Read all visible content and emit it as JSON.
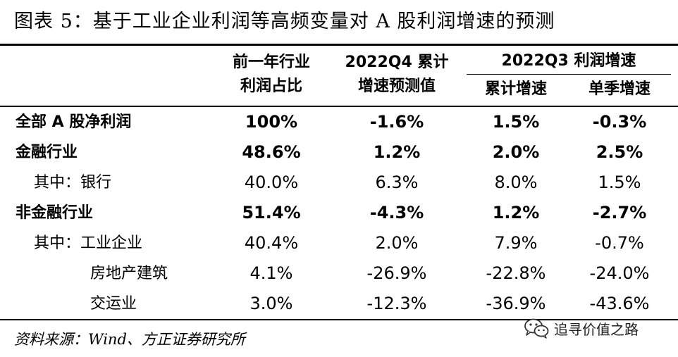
{
  "title": "图表 5：基于工业企业利润等高频变量对 A 股利润增速的预测",
  "headers": {
    "share_line1": "前一年行业",
    "share_line2": "利润占比",
    "forecast_line1": "2022Q4 累计",
    "forecast_line2": "增速预测值",
    "q3_group": "2022Q3 利润增速",
    "q3_cum": "累计增速",
    "q3_single": "单季增速"
  },
  "rows": [
    {
      "label": "全部 A 股净利润",
      "share": "100%",
      "q4": "-1.6%",
      "q3cum": "1.5%",
      "q3single": "-0.3%"
    },
    {
      "label": "金融行业",
      "share": "48.6%",
      "q4": "1.2%",
      "q3cum": "2.0%",
      "q3single": "2.5%"
    },
    {
      "label": "其中：银行",
      "share": "40.0%",
      "q4": "6.3%",
      "q3cum": "8.0%",
      "q3single": "1.5%"
    },
    {
      "label": "非金融行业",
      "share": "51.4%",
      "q4": "-4.3%",
      "q3cum": "1.2%",
      "q3single": "-2.7%"
    },
    {
      "label": "其中：工业企业",
      "share": "40.4%",
      "q4": "2.0%",
      "q3cum": "7.9%",
      "q3single": "-0.7%"
    },
    {
      "label": "房地产建筑",
      "share": "4.1%",
      "q4": "-26.9%",
      "q3cum": "-22.8%",
      "q3single": "-24.0%"
    },
    {
      "label": "交运业",
      "share": "3.0%",
      "q4": "-12.3%",
      "q3cum": "-36.9%",
      "q3single": "-43.6%"
    }
  ],
  "source": "资料来源：Wind、方正证券研究所",
  "watermark": {
    "text": "追寻价值之路",
    "icon": "wechat-icon"
  }
}
